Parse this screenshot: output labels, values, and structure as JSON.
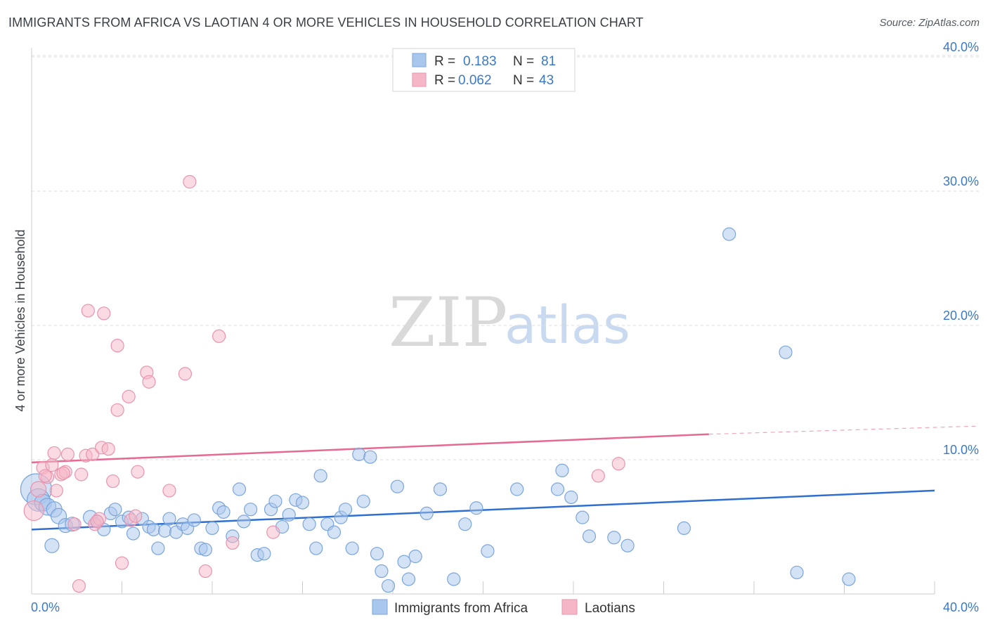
{
  "header": {
    "title": "IMMIGRANTS FROM AFRICA VS LAOTIAN 4 OR MORE VEHICLES IN HOUSEHOLD CORRELATION CHART",
    "source": "Source: ZipAtlas.com"
  },
  "watermark": {
    "zip": "ZIP",
    "atlas": "atlas"
  },
  "legend": {
    "rows": [
      {
        "r_label": "R =",
        "r_value": "0.183",
        "n_label": "N =",
        "n_value": "81",
        "color": "#a9c6ec"
      },
      {
        "r_label": "R =",
        "r_value": "0.062",
        "n_label": "N =",
        "n_value": "43",
        "color": "#f5b7c8"
      }
    ]
  },
  "bottom_legend": [
    {
      "label": "Immigrants from Africa",
      "color": "#a9c6ec"
    },
    {
      "label": "Laotians",
      "color": "#f5b7c8"
    }
  ],
  "chart_data": {
    "type": "scatter",
    "title": "IMMIGRANTS FROM AFRICA VS LAOTIAN 4 OR MORE VEHICLES IN HOUSEHOLD CORRELATION CHART",
    "ylabel": "4 or more Vehicles in Household",
    "xlabel": "",
    "xlim": [
      0,
      40
    ],
    "ylim": [
      0,
      42
    ],
    "x_tick_labels": [
      "0.0%",
      "40.0%"
    ],
    "y_ticks": [
      10,
      20,
      30,
      40
    ],
    "y_tick_labels": [
      "10.0%",
      "20.0%",
      "30.0%",
      "40.0%"
    ],
    "grid": true,
    "legend_placement": "top-center",
    "series": [
      {
        "name": "Immigrants from Africa",
        "color": "#a9c6ec",
        "stroke": "#7aa5dc",
        "trend_color": "#2f6fcf",
        "trend": {
          "x0": 0,
          "y0": 4.8,
          "x1": 40,
          "y1": 7.7
        },
        "points": [
          [
            0.2,
            7.8,
            22
          ],
          [
            0.3,
            7.0,
            16
          ],
          [
            0.5,
            6.8,
            12
          ],
          [
            0.7,
            6.5,
            12
          ],
          [
            1.0,
            6.3,
            11
          ],
          [
            1.2,
            5.8,
            11
          ],
          [
            1.5,
            5.1,
            10
          ],
          [
            1.8,
            5.2,
            10
          ],
          [
            2.6,
            5.7,
            10
          ],
          [
            2.9,
            5.4,
            9
          ],
          [
            3.2,
            4.8,
            9
          ],
          [
            3.5,
            6.0,
            9
          ],
          [
            3.7,
            6.3,
            9
          ],
          [
            4.0,
            5.4,
            9
          ],
          [
            4.3,
            5.7,
            9
          ],
          [
            4.5,
            4.5,
            9
          ],
          [
            4.9,
            5.6,
            9
          ],
          [
            5.2,
            5.0,
            9
          ],
          [
            5.4,
            4.8,
            9
          ],
          [
            5.6,
            3.4,
            9
          ],
          [
            5.9,
            4.7,
            9
          ],
          [
            6.1,
            5.6,
            9
          ],
          [
            6.4,
            4.6,
            9
          ],
          [
            6.7,
            5.2,
            9
          ],
          [
            6.9,
            4.9,
            9
          ],
          [
            7.2,
            5.5,
            9
          ],
          [
            7.5,
            3.4,
            9
          ],
          [
            7.7,
            3.3,
            9
          ],
          [
            8.0,
            4.9,
            9
          ],
          [
            8.3,
            6.4,
            9
          ],
          [
            8.5,
            6.1,
            9
          ],
          [
            8.9,
            4.3,
            9
          ],
          [
            9.2,
            7.8,
            9
          ],
          [
            9.4,
            5.4,
            9
          ],
          [
            9.7,
            6.3,
            9
          ],
          [
            10.0,
            2.9,
            9
          ],
          [
            10.3,
            3.0,
            9
          ],
          [
            10.6,
            6.3,
            9
          ],
          [
            10.8,
            6.9,
            9
          ],
          [
            11.1,
            5.0,
            9
          ],
          [
            11.4,
            5.9,
            9
          ],
          [
            11.7,
            7.0,
            9
          ],
          [
            12.0,
            6.8,
            9
          ],
          [
            12.3,
            5.2,
            9
          ],
          [
            12.6,
            3.4,
            9
          ],
          [
            12.8,
            8.8,
            9
          ],
          [
            13.1,
            5.2,
            9
          ],
          [
            13.4,
            4.6,
            9
          ],
          [
            13.7,
            5.7,
            9
          ],
          [
            13.9,
            6.3,
            9
          ],
          [
            14.2,
            3.4,
            9
          ],
          [
            14.5,
            10.4,
            9
          ],
          [
            14.7,
            6.9,
            9
          ],
          [
            15.0,
            10.2,
            9
          ],
          [
            15.3,
            3.0,
            9
          ],
          [
            15.5,
            1.7,
            9
          ],
          [
            15.8,
            0.6,
            9
          ],
          [
            16.2,
            8.0,
            9
          ],
          [
            16.5,
            2.4,
            9
          ],
          [
            16.7,
            1.1,
            9
          ],
          [
            17.0,
            2.8,
            9
          ],
          [
            17.5,
            6.0,
            9
          ],
          [
            18.1,
            7.8,
            9
          ],
          [
            18.7,
            1.1,
            9
          ],
          [
            19.2,
            5.2,
            9
          ],
          [
            19.7,
            6.4,
            9
          ],
          [
            20.2,
            3.2,
            9
          ],
          [
            21.5,
            7.8,
            9
          ],
          [
            23.3,
            7.8,
            9
          ],
          [
            23.5,
            9.2,
            9
          ],
          [
            23.9,
            7.2,
            9
          ],
          [
            24.4,
            5.7,
            9
          ],
          [
            24.7,
            4.3,
            9
          ],
          [
            25.8,
            4.2,
            9
          ],
          [
            26.4,
            3.6,
            9
          ],
          [
            28.9,
            4.9,
            9
          ],
          [
            30.9,
            26.8,
            9
          ],
          [
            33.4,
            18.0,
            9
          ],
          [
            33.9,
            1.6,
            9
          ],
          [
            36.2,
            1.1,
            9
          ],
          [
            0.9,
            3.6,
            10
          ]
        ]
      },
      {
        "name": "Laotians",
        "color": "#f5b7c8",
        "stroke": "#ea93ad",
        "trend_color": "#e56a92",
        "trend": {
          "x0": 0,
          "y0": 9.8,
          "x1": 30,
          "y1": 11.9
        },
        "trend_dashed": {
          "x0": 30,
          "y0": 11.9,
          "x1": 40,
          "y1": 12.5
        },
        "points": [
          [
            0.1,
            6.2,
            14
          ],
          [
            0.3,
            7.8,
            11
          ],
          [
            0.5,
            9.4,
            9
          ],
          [
            0.7,
            8.7,
            9
          ],
          [
            0.9,
            9.6,
            9
          ],
          [
            1.0,
            10.5,
            9
          ],
          [
            1.1,
            7.7,
            9
          ],
          [
            1.3,
            8.9,
            9
          ],
          [
            1.5,
            9.1,
            9
          ],
          [
            1.6,
            10.4,
            9
          ],
          [
            1.9,
            5.2,
            9
          ],
          [
            2.1,
            0.6,
            9
          ],
          [
            2.2,
            8.9,
            9
          ],
          [
            2.4,
            10.3,
            9
          ],
          [
            2.5,
            21.1,
            9
          ],
          [
            2.7,
            10.4,
            9
          ],
          [
            2.8,
            5.2,
            9
          ],
          [
            3.0,
            5.6,
            9
          ],
          [
            3.1,
            10.9,
            9
          ],
          [
            3.2,
            20.9,
            9
          ],
          [
            3.4,
            10.8,
            9
          ],
          [
            3.6,
            8.4,
            9
          ],
          [
            3.8,
            13.7,
            9
          ],
          [
            3.8,
            18.5,
            9
          ],
          [
            4.0,
            2.3,
            9
          ],
          [
            4.3,
            14.7,
            9
          ],
          [
            4.4,
            5.5,
            9
          ],
          [
            4.6,
            5.8,
            9
          ],
          [
            4.7,
            9.1,
            9
          ],
          [
            5.1,
            16.5,
            9
          ],
          [
            5.2,
            15.8,
            9
          ],
          [
            6.1,
            7.7,
            9
          ],
          [
            6.8,
            16.4,
            9
          ],
          [
            7.0,
            30.7,
            9
          ],
          [
            7.7,
            1.7,
            9
          ],
          [
            8.3,
            19.2,
            9
          ],
          [
            8.9,
            3.8,
            9
          ],
          [
            10.7,
            4.6,
            9
          ],
          [
            25.1,
            8.8,
            9
          ],
          [
            26.0,
            9.7,
            9
          ],
          [
            2.9,
            5.4,
            9
          ],
          [
            1.4,
            9.0,
            9
          ],
          [
            0.6,
            8.8,
            9
          ]
        ]
      }
    ]
  }
}
